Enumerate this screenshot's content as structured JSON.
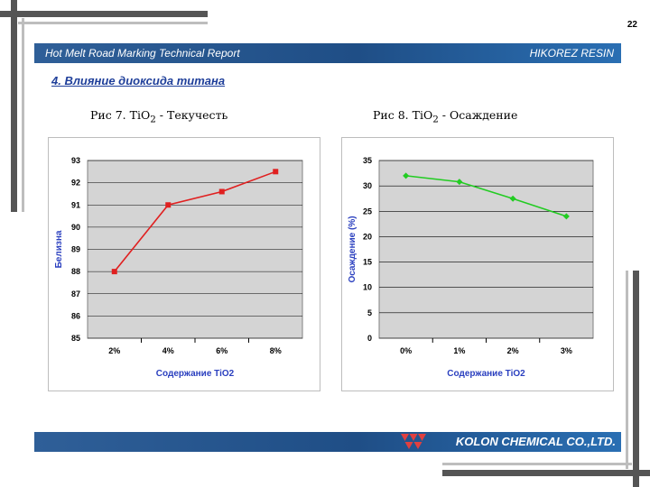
{
  "page_number": "22",
  "header": {
    "left": "Hot Melt Road Marking Technical Report",
    "right": "HIKOREZ RESIN"
  },
  "section_title": "4. Влияние диоксида титана",
  "footer": {
    "company": "KOLON CHEMICAL CO.,LTD.",
    "logo_icon": "kolon-logo-icon"
  },
  "colors": {
    "bar": "#1f4e86",
    "series1": "#e02020",
    "series2": "#22cc22",
    "axis_label": "#2a3fbf"
  },
  "chart_data": [
    {
      "type": "line",
      "caption": {
        "prefix": "Рис 7. TiO",
        "sub": "2",
        "suffix": " - Текучесть"
      },
      "categories": [
        "2%",
        "4%",
        "6%",
        "8%"
      ],
      "series": [
        {
          "values": [
            88.0,
            91.0,
            91.6,
            92.5
          ]
        }
      ],
      "xlabel": "Содержание TiO2",
      "ylabel": "Белизна",
      "ylim": [
        85,
        93
      ],
      "yticks": [
        "93",
        "92",
        "91",
        "90",
        "89",
        "88",
        "87",
        "86",
        "85"
      ],
      "marker": "square",
      "grid": true,
      "legend": "none"
    },
    {
      "type": "line",
      "caption": {
        "prefix": "Рис 8. TiO",
        "sub": "2",
        "suffix": " - Осаждение"
      },
      "categories": [
        "0%",
        "1%",
        "2%",
        "3%"
      ],
      "series": [
        {
          "values": [
            32.0,
            30.8,
            27.5,
            24.0
          ]
        }
      ],
      "xlabel": "Содержание TiO2",
      "ylabel": "Осаждение (%)",
      "ylim": [
        0,
        35
      ],
      "yticks": [
        "35",
        "30",
        "25",
        "20",
        "15",
        "10",
        "5",
        "0"
      ],
      "marker": "diamond",
      "grid": true,
      "legend": "none"
    }
  ]
}
